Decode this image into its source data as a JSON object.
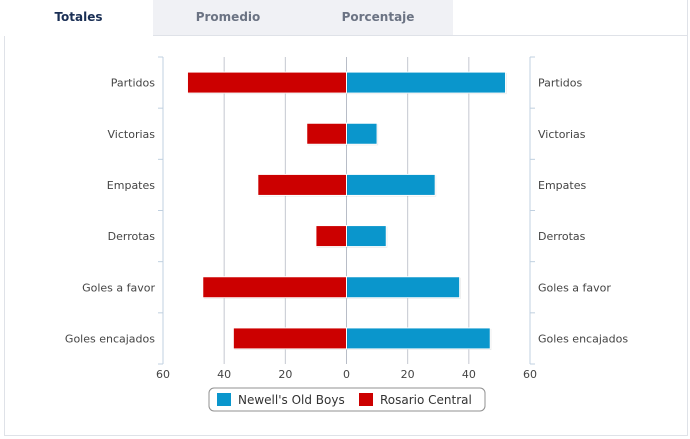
{
  "tabs": [
    {
      "label": "Totales",
      "active": true
    },
    {
      "label": "Promedio",
      "active": false
    },
    {
      "label": "Porcentaje",
      "active": false
    }
  ],
  "chart_data": {
    "type": "bar",
    "orientation": "horizontal-butterfly",
    "categories": [
      "Partidos",
      "Victorias",
      "Empates",
      "Derrotas",
      "Goles a favor",
      "Goles encajados"
    ],
    "series": [
      {
        "name": "Newell's Old Boys",
        "color": "#0a96cc",
        "side": "right",
        "values": [
          52,
          10,
          29,
          13,
          37,
          47
        ]
      },
      {
        "name": "Rosario Central",
        "color": "#cc0000",
        "side": "left",
        "values": [
          52,
          13,
          29,
          10,
          47,
          37
        ]
      }
    ],
    "xticks": [
      "60",
      "40",
      "20",
      "0",
      "20",
      "40",
      "60"
    ],
    "xlim": [
      -60,
      60
    ],
    "grid": true,
    "legend_position": "bottom-center"
  }
}
